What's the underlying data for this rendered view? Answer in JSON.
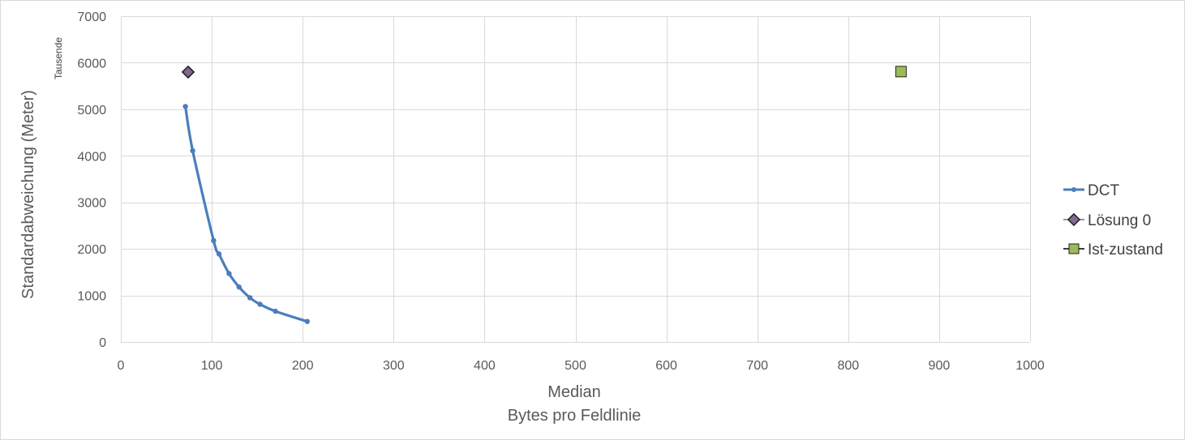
{
  "chart_data": {
    "type": "scatter",
    "title": "",
    "xlabel": "Median",
    "xlabel_sub": "Bytes pro Feldlinie",
    "ylabel": "Standardabweichung (Meter)",
    "y_display_units": "Tausende",
    "xlim": [
      0,
      1000
    ],
    "ylim": [
      0,
      7000
    ],
    "x_ticks": [
      0,
      100,
      200,
      300,
      400,
      500,
      600,
      700,
      800,
      900,
      1000
    ],
    "y_ticks": [
      0,
      1000,
      2000,
      3000,
      4000,
      5000,
      6000,
      7000
    ],
    "grid": true,
    "legend_position": "right",
    "series": [
      {
        "name": "DCT",
        "kind": "line",
        "marker": "circle",
        "color": "#4a7ebb",
        "x": [
          71,
          79,
          102,
          108,
          119,
          130,
          142,
          153,
          170,
          205
        ],
        "y": [
          5060,
          4110,
          2180,
          1890,
          1470,
          1180,
          950,
          810,
          660,
          440
        ]
      },
      {
        "name": "Lösung 0",
        "kind": "point",
        "marker": "diamond",
        "color": "#7f6a8e",
        "x": [
          74
        ],
        "y": [
          5800
        ]
      },
      {
        "name": "Ist-zustand",
        "kind": "point",
        "marker": "square",
        "color": "#9bbb59",
        "x": [
          858
        ],
        "y": [
          5810
        ]
      }
    ]
  }
}
